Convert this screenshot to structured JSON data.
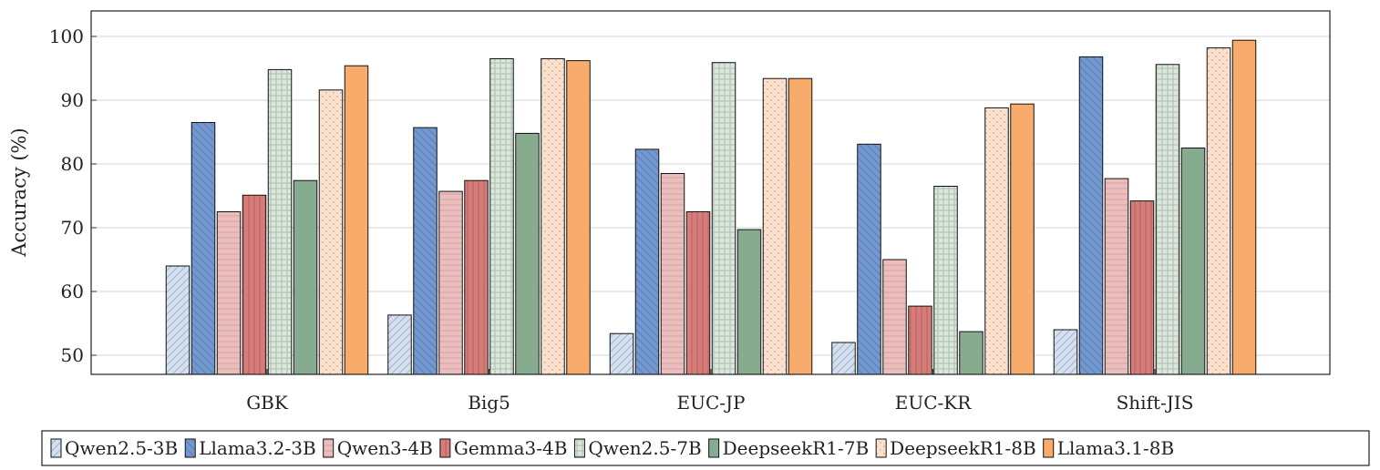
{
  "chart_data": {
    "type": "bar",
    "title": "",
    "xlabel": "",
    "ylabel": "Accuracy (%)",
    "ylim": [
      47,
      104
    ],
    "yticks": [
      50,
      60,
      70,
      80,
      90,
      100
    ],
    "grid": "horizontal",
    "legend_position": "bottom",
    "categories": [
      "GBK",
      "Big5",
      "EUC-JP",
      "EUC-KR",
      "Shift-JIS"
    ],
    "series": [
      {
        "name": "Qwen2.5-3B",
        "values": [
          64.0,
          56.3,
          53.4,
          52.0,
          54.0
        ],
        "color": "#d5e0ef",
        "pattern": "diag-light"
      },
      {
        "name": "Llama3.2-3B",
        "values": [
          86.5,
          85.7,
          82.3,
          83.1,
          96.8
        ],
        "color": "#7298cf",
        "pattern": "diag-dark"
      },
      {
        "name": "Qwen3-4B",
        "values": [
          72.5,
          75.7,
          78.5,
          65.0,
          77.7
        ],
        "color": "#ebbdbd",
        "pattern": "hlines"
      },
      {
        "name": "Gemma3-4B",
        "values": [
          75.1,
          77.4,
          72.5,
          57.7,
          74.2
        ],
        "color": "#d67d7a",
        "pattern": "vlines"
      },
      {
        "name": "Qwen2.5-7B",
        "values": [
          94.8,
          96.5,
          95.9,
          76.5,
          95.6
        ],
        "color": "#dbe6dc",
        "pattern": "grid"
      },
      {
        "name": "DeepseekR1-7B",
        "values": [
          77.4,
          84.8,
          69.7,
          53.7,
          82.5
        ],
        "color": "#86ab8f",
        "pattern": "none"
      },
      {
        "name": "DeepseekR1-8B",
        "values": [
          91.6,
          96.5,
          93.4,
          88.8,
          98.2
        ],
        "color": "#fbe1cc",
        "pattern": "dots"
      },
      {
        "name": "Llama3.1-8B",
        "values": [
          95.4,
          96.2,
          93.4,
          89.4,
          99.4
        ],
        "color": "#f8ab6a",
        "pattern": "none"
      }
    ]
  }
}
